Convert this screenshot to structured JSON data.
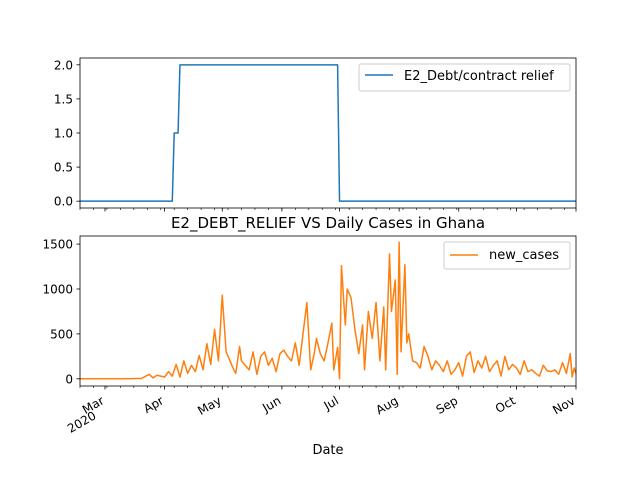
{
  "chart_data": [
    {
      "type": "line",
      "title": "",
      "xlabel": "",
      "ylabel": "",
      "xlim": [
        "2020-02-17",
        "2020-11-01"
      ],
      "ylim": [
        -0.1,
        2.1
      ],
      "yticks": [
        0.0,
        0.5,
        1.0,
        1.5,
        2.0
      ],
      "ytick_labels": [
        "0.0",
        "0.5",
        "1.0",
        "1.5",
        "2.0"
      ],
      "legend": "top-right",
      "series": [
        {
          "name": "E2_Debt/contract relief",
          "color": "#1f77b4",
          "x": [
            "2020-02-17",
            "2020-04-05",
            "2020-04-06",
            "2020-04-08",
            "2020-04-09",
            "2020-06-30",
            "2020-07-01",
            "2020-11-01"
          ],
          "values": [
            0,
            0,
            1,
            1,
            2,
            2,
            0,
            0
          ]
        }
      ]
    },
    {
      "type": "line",
      "title": "E2_DEBT_RELIEF VS Daily Cases in Ghana",
      "xlabel": "Date",
      "ylabel": "",
      "xlim": [
        "2020-02-17",
        "2020-11-01"
      ],
      "ylim": [
        -80,
        1590
      ],
      "yticks": [
        0,
        500,
        1000,
        1500
      ],
      "ytick_labels": [
        "0",
        "500",
        "1000",
        "1500"
      ],
      "xticks": [
        {
          "date": "2020-03-01",
          "label": "Mar",
          "sublabel": "2020"
        },
        {
          "date": "2020-04-01",
          "label": "Apr"
        },
        {
          "date": "2020-05-01",
          "label": "May"
        },
        {
          "date": "2020-06-01",
          "label": "Jun"
        },
        {
          "date": "2020-07-01",
          "label": "Jul"
        },
        {
          "date": "2020-08-01",
          "label": "Aug"
        },
        {
          "date": "2020-09-01",
          "label": "Sep"
        },
        {
          "date": "2020-10-01",
          "label": "Oct"
        },
        {
          "date": "2020-11-01",
          "label": "Nov"
        }
      ],
      "legend": "top-right",
      "series": [
        {
          "name": "new_cases",
          "color": "#ff7f0e",
          "x": [
            "2020-02-17",
            "2020-03-10",
            "2020-03-20",
            "2020-03-24",
            "2020-03-26",
            "2020-03-28",
            "2020-04-01",
            "2020-04-03",
            "2020-04-05",
            "2020-04-07",
            "2020-04-09",
            "2020-04-11",
            "2020-04-13",
            "2020-04-15",
            "2020-04-17",
            "2020-04-19",
            "2020-04-21",
            "2020-04-23",
            "2020-04-25",
            "2020-04-27",
            "2020-04-29",
            "2020-05-01",
            "2020-05-03",
            "2020-05-05",
            "2020-05-07",
            "2020-05-08",
            "2020-05-10",
            "2020-05-11",
            "2020-05-13",
            "2020-05-15",
            "2020-05-17",
            "2020-05-19",
            "2020-05-21",
            "2020-05-23",
            "2020-05-25",
            "2020-05-27",
            "2020-05-29",
            "2020-05-31",
            "2020-06-02",
            "2020-06-04",
            "2020-06-06",
            "2020-06-08",
            "2020-06-10",
            "2020-06-12",
            "2020-06-14",
            "2020-06-16",
            "2020-06-18",
            "2020-06-19",
            "2020-06-21",
            "2020-06-23",
            "2020-06-25",
            "2020-06-27",
            "2020-06-28",
            "2020-06-30",
            "2020-07-01",
            "2020-07-02",
            "2020-07-04",
            "2020-07-05",
            "2020-07-07",
            "2020-07-09",
            "2020-07-11",
            "2020-07-13",
            "2020-07-14",
            "2020-07-16",
            "2020-07-18",
            "2020-07-20",
            "2020-07-22",
            "2020-07-24",
            "2020-07-25",
            "2020-07-27",
            "2020-07-28",
            "2020-07-30",
            "2020-07-31",
            "2020-08-01",
            "2020-08-02",
            "2020-08-03",
            "2020-08-04",
            "2020-08-05",
            "2020-08-06",
            "2020-08-08",
            "2020-08-10",
            "2020-08-12",
            "2020-08-14",
            "2020-08-16",
            "2020-08-18",
            "2020-08-20",
            "2020-08-22",
            "2020-08-24",
            "2020-08-26",
            "2020-08-28",
            "2020-08-30",
            "2020-09-01",
            "2020-09-03",
            "2020-09-05",
            "2020-09-07",
            "2020-09-09",
            "2020-09-11",
            "2020-09-13",
            "2020-09-15",
            "2020-09-17",
            "2020-09-19",
            "2020-09-21",
            "2020-09-23",
            "2020-09-25",
            "2020-09-27",
            "2020-09-29",
            "2020-10-01",
            "2020-10-03",
            "2020-10-05",
            "2020-10-07",
            "2020-10-09",
            "2020-10-11",
            "2020-10-13",
            "2020-10-15",
            "2020-10-17",
            "2020-10-19",
            "2020-10-21",
            "2020-10-23",
            "2020-10-25",
            "2020-10-27",
            "2020-10-29",
            "2020-10-30",
            "2020-10-31",
            "2020-11-01"
          ],
          "values": [
            0,
            0,
            5,
            50,
            10,
            40,
            20,
            80,
            30,
            160,
            20,
            200,
            60,
            150,
            80,
            260,
            100,
            390,
            160,
            550,
            200,
            930,
            300,
            200,
            100,
            60,
            360,
            200,
            150,
            100,
            300,
            50,
            250,
            300,
            150,
            230,
            80,
            280,
            320,
            250,
            200,
            400,
            150,
            500,
            850,
            100,
            300,
            450,
            280,
            200,
            400,
            620,
            100,
            350,
            0,
            1260,
            600,
            1000,
            900,
            550,
            280,
            600,
            100,
            750,
            450,
            850,
            200,
            800,
            100,
            1390,
            750,
            1100,
            50,
            1520,
            300,
            800,
            1270,
            400,
            500,
            200,
            180,
            120,
            360,
            250,
            100,
            200,
            150,
            80,
            200,
            50,
            100,
            180,
            30,
            250,
            300,
            70,
            200,
            120,
            250,
            80,
            150,
            200,
            30,
            250,
            100,
            160,
            120,
            50,
            200,
            80,
            100,
            60,
            30,
            150,
            90,
            80,
            100,
            50,
            180,
            60,
            280,
            20,
            120,
            60
          ]
        }
      ]
    }
  ]
}
